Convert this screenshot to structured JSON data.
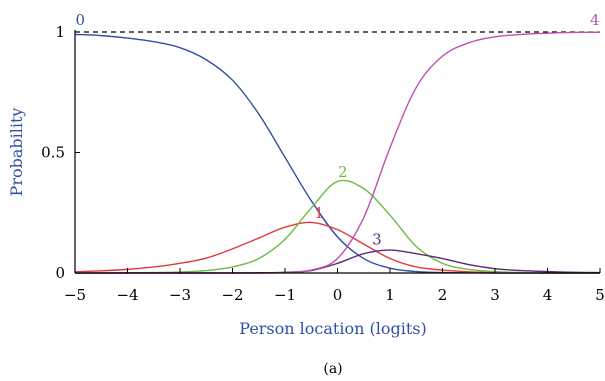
{
  "chart_data": {
    "type": "line",
    "title": "",
    "caption": "(a)",
    "xlabel": "Person location (logits)",
    "ylabel": "Probability",
    "xlim": [
      -5,
      5
    ],
    "ylim": [
      0,
      1
    ],
    "x_ticks": [
      "−5",
      "−4",
      "−3",
      "−2",
      "−1",
      "0",
      "1",
      "2",
      "3",
      "4",
      "5"
    ],
    "y_ticks": [
      "0",
      "0.5",
      "1"
    ],
    "reference_line": {
      "y": 1,
      "style": "dashed",
      "color": "#000000"
    },
    "colors": {
      "axis_title": "#2f4fa8"
    },
    "x": [
      -5,
      -4.5,
      -4,
      -3.5,
      -3,
      -2.5,
      -2,
      -1.5,
      -1,
      -0.5,
      0,
      0.5,
      1,
      1.5,
      2,
      2.5,
      3,
      3.5,
      4,
      4.5,
      5
    ],
    "series": [
      {
        "name": "0",
        "color": "#2f4fa8",
        "values": [
          0.99,
          0.985,
          0.975,
          0.96,
          0.935,
          0.885,
          0.8,
          0.66,
          0.48,
          0.3,
          0.15,
          0.06,
          0.02,
          0.006,
          0.002,
          0.001,
          0,
          0,
          0,
          0,
          0
        ]
      },
      {
        "name": "1",
        "color": "#e23a3a",
        "values": [
          0.005,
          0.009,
          0.015,
          0.025,
          0.04,
          0.062,
          0.1,
          0.145,
          0.19,
          0.21,
          0.18,
          0.12,
          0.06,
          0.025,
          0.012,
          0.005,
          0.002,
          0.001,
          0,
          0,
          0
        ]
      },
      {
        "name": "2",
        "color": "#6dbb45",
        "values": [
          0,
          0,
          0.001,
          0.002,
          0.004,
          0.01,
          0.025,
          0.06,
          0.14,
          0.27,
          0.38,
          0.35,
          0.24,
          0.11,
          0.04,
          0.015,
          0.006,
          0.002,
          0.001,
          0,
          0
        ]
      },
      {
        "name": "3",
        "color": "#5a2a7a",
        "values": [
          0,
          0,
          0,
          0,
          0,
          0,
          0,
          0.001,
          0.003,
          0.01,
          0.04,
          0.08,
          0.095,
          0.08,
          0.06,
          0.035,
          0.018,
          0.01,
          0.006,
          0.003,
          0.002
        ]
      },
      {
        "name": "4",
        "color": "#c050b0",
        "values": [
          0,
          0,
          0,
          0,
          0,
          0,
          0,
          0,
          0.002,
          0.012,
          0.06,
          0.23,
          0.52,
          0.77,
          0.9,
          0.955,
          0.98,
          0.99,
          0.995,
          0.998,
          0.999
        ]
      }
    ],
    "curve_labels": [
      {
        "text": "0",
        "x": -4.9,
        "y": 1.02
      },
      {
        "text": "1",
        "x": -0.35,
        "y": 0.22
      },
      {
        "text": "2",
        "x": 0.1,
        "y": 0.39
      },
      {
        "text": "3",
        "x": 0.75,
        "y": 0.11
      },
      {
        "text": "4",
        "x": 4.9,
        "y": 1.02
      }
    ]
  }
}
